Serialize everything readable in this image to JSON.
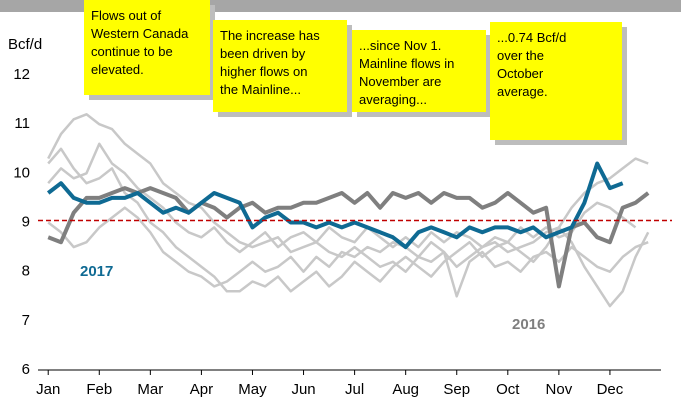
{
  "chart_data": {
    "type": "line",
    "y_label": "Bcf/d",
    "x": [
      0,
      0.25,
      0.5,
      0.75,
      1,
      1.25,
      1.5,
      1.75,
      2,
      2.25,
      2.5,
      2.75,
      3,
      3.25,
      3.5,
      3.75,
      4,
      4.25,
      4.5,
      4.75,
      5,
      5.25,
      5.5,
      5.75,
      6,
      6.25,
      6.5,
      6.75,
      7,
      7.25,
      7.5,
      7.75,
      8,
      8.25,
      8.5,
      8.75,
      9,
      9.25,
      9.5,
      9.75,
      10,
      10.25,
      10.5,
      10.75,
      11,
      11.25,
      11.5,
      11.75
    ],
    "xlim": [
      -0.2,
      12
    ],
    "xticks": [
      {
        "value": 0,
        "label": "Jan"
      },
      {
        "value": 1,
        "label": "Feb"
      },
      {
        "value": 2,
        "label": "Mar"
      },
      {
        "value": 3,
        "label": "Apr"
      },
      {
        "value": 4,
        "label": "May"
      },
      {
        "value": 5,
        "label": "Jun"
      },
      {
        "value": 6,
        "label": "Jul"
      },
      {
        "value": 7,
        "label": "Aug"
      },
      {
        "value": 8,
        "label": "Sep"
      },
      {
        "value": 9,
        "label": "Oct"
      },
      {
        "value": 10,
        "label": "Nov"
      },
      {
        "value": 11,
        "label": "Dec"
      }
    ],
    "ylim": [
      6,
      12
    ],
    "yticks": [
      6,
      7,
      8,
      9,
      10,
      11,
      12
    ],
    "reference_line": {
      "value": 9.04,
      "color": "#c00000"
    },
    "series": [
      {
        "name": null,
        "color": "#c8c8c8",
        "values": [
          10.3,
          10.8,
          11.1,
          11.2,
          11.0,
          10.9,
          10.6,
          10.4,
          10.2,
          9.8,
          9.6,
          9.4,
          9.3,
          9.0,
          8.8,
          8.6,
          8.5,
          8.6,
          8.7,
          8.4,
          8.5,
          8.6,
          8.4,
          8.3,
          8.5,
          8.3,
          8.1,
          8.2,
          8.0,
          8.3,
          8.2,
          8.4,
          8.1,
          8.3,
          8.5,
          8.6,
          8.4,
          8.5,
          8.6,
          8.8,
          8.9,
          9.3,
          9.6,
          9.8,
          9.9,
          10.1,
          10.3,
          10.2
        ]
      },
      {
        "name": null,
        "color": "#c8c8c8",
        "values": [
          10.2,
          10.5,
          10.1,
          9.8,
          9.9,
          10.1,
          9.6,
          9.4,
          9.0,
          8.8,
          8.5,
          8.3,
          8.1,
          7.9,
          7.6,
          7.6,
          7.8,
          7.7,
          7.9,
          7.6,
          7.8,
          8.0,
          7.7,
          7.9,
          8.2,
          8.0,
          7.8,
          8.1,
          8.3,
          8.1,
          7.9,
          8.2,
          8.4,
          8.6,
          8.3,
          8.5,
          8.6,
          8.4,
          8.2,
          8.5,
          8.9,
          8.6,
          8.1,
          7.7,
          7.3,
          7.6,
          8.3,
          8.8
        ]
      },
      {
        "name": null,
        "color": "#c8c8c8",
        "values": [
          9.0,
          8.8,
          8.5,
          8.6,
          8.9,
          9.1,
          9.3,
          9.1,
          8.8,
          8.4,
          8.2,
          8.0,
          7.9,
          7.7,
          7.8,
          8.0,
          8.2,
          8.0,
          8.1,
          8.3,
          8.0,
          8.3,
          8.1,
          8.4,
          8.3,
          8.5,
          8.4,
          8.6,
          8.5,
          8.3,
          8.6,
          8.4,
          7.5,
          8.2,
          8.4,
          8.1,
          8.2,
          8.0,
          8.3,
          8.4,
          8.2,
          8.5,
          8.3,
          8.1,
          8.0,
          8.3,
          8.5,
          8.6
        ]
      },
      {
        "name": null,
        "color": "#c8c8c8",
        "values": [
          9.8,
          10.1,
          9.9,
          10.0,
          10.6,
          10.2,
          10.0,
          9.7,
          9.5,
          9.3,
          9.0,
          8.8,
          8.7,
          8.9,
          8.6,
          8.4,
          8.6,
          8.8,
          8.5,
          8.7,
          8.8,
          8.6,
          8.9,
          8.7,
          8.6,
          8.9,
          8.7,
          8.5,
          8.7,
          8.5,
          8.8,
          8.6,
          8.8,
          8.7,
          8.5,
          8.7,
          8.6,
          8.9,
          8.7,
          8.9,
          8.7,
          8.8,
          9.2,
          9.4,
          9.3,
          9.1,
          8.9,
          null
        ]
      },
      {
        "name": "2016",
        "color": "#7f7f7f",
        "values": [
          8.7,
          8.6,
          9.2,
          9.5,
          9.5,
          9.6,
          9.7,
          9.6,
          9.7,
          9.6,
          9.5,
          9.2,
          9.4,
          9.3,
          9.1,
          9.3,
          9.4,
          9.2,
          9.3,
          9.3,
          9.4,
          9.4,
          9.5,
          9.6,
          9.4,
          9.6,
          9.3,
          9.6,
          9.5,
          9.6,
          9.4,
          9.6,
          9.5,
          9.5,
          9.3,
          9.4,
          9.6,
          9.4,
          9.2,
          9.3,
          7.7,
          8.9,
          9.0,
          8.7,
          8.6,
          9.3,
          9.4,
          9.6
        ]
      },
      {
        "name": "2017",
        "color": "#0f6a93",
        "values": [
          9.6,
          9.8,
          9.5,
          9.4,
          9.4,
          9.5,
          9.5,
          9.6,
          9.4,
          9.2,
          9.3,
          9.2,
          9.4,
          9.6,
          9.5,
          9.4,
          8.9,
          9.1,
          9.2,
          9.0,
          9.0,
          8.9,
          9.0,
          8.9,
          9.0,
          8.9,
          8.8,
          8.7,
          8.5,
          8.8,
          8.9,
          8.8,
          8.7,
          8.9,
          8.8,
          8.9,
          8.9,
          8.8,
          8.9,
          8.7,
          8.8,
          8.9,
          9.4,
          10.2,
          9.7,
          9.8,
          null,
          null
        ]
      }
    ],
    "annotations": [
      {
        "lines": [
          "Flows out of",
          "Western Canada",
          "continue to be",
          "elevated."
        ]
      },
      {
        "lines": [
          "The increase has",
          "been driven by",
          "higher flows on",
          "the Mainline..."
        ]
      },
      {
        "lines": [
          "...since Nov 1.",
          "Mainline flows in",
          "November are",
          "averaging..."
        ]
      },
      {
        "lines": [
          "...0.74 Bcf/d",
          "over the",
          "October",
          "average."
        ]
      }
    ]
  }
}
